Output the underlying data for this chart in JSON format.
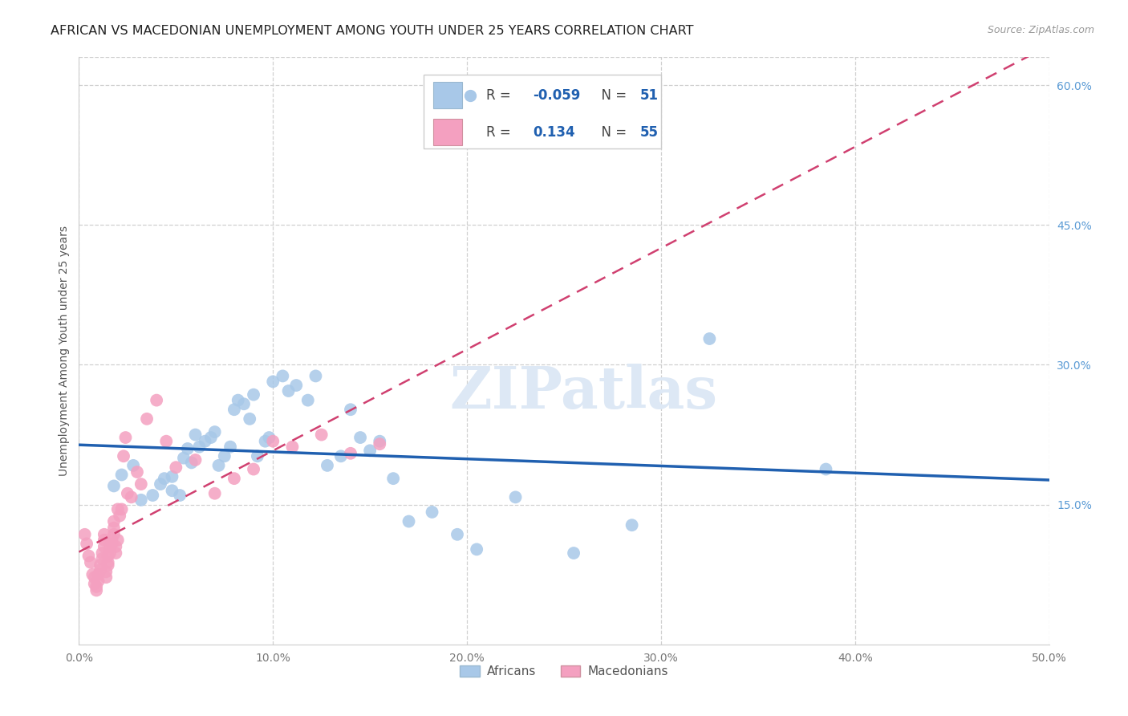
{
  "title": "AFRICAN VS MACEDONIAN UNEMPLOYMENT AMONG YOUTH UNDER 25 YEARS CORRELATION CHART",
  "source": "Source: ZipAtlas.com",
  "ylabel": "Unemployment Among Youth under 25 years",
  "xlim": [
    0.0,
    0.5
  ],
  "ylim": [
    0.0,
    0.63
  ],
  "xticks": [
    0.0,
    0.1,
    0.2,
    0.3,
    0.4,
    0.5
  ],
  "xticklabels": [
    "0.0%",
    "10.0%",
    "20.0%",
    "30.0%",
    "40.0%",
    "50.0%"
  ],
  "yticks_right": [
    0.15,
    0.3,
    0.45,
    0.6
  ],
  "yticklabels_right": [
    "15.0%",
    "30.0%",
    "45.0%",
    "60.0%"
  ],
  "legend_r_african": "-0.059",
  "legend_n_african": "51",
  "legend_r_macedonian": "0.134",
  "legend_n_macedonian": "55",
  "african_color": "#a8c8e8",
  "macedonian_color": "#f4a0c0",
  "african_line_color": "#2060b0",
  "macedonian_line_color": "#d04070",
  "watermark_text": "ZIPatlas",
  "africans_x": [
    0.018,
    0.022,
    0.028,
    0.032,
    0.038,
    0.042,
    0.044,
    0.048,
    0.048,
    0.052,
    0.054,
    0.056,
    0.058,
    0.06,
    0.062,
    0.065,
    0.068,
    0.07,
    0.072,
    0.075,
    0.078,
    0.08,
    0.082,
    0.085,
    0.088,
    0.09,
    0.092,
    0.096,
    0.098,
    0.1,
    0.105,
    0.108,
    0.112,
    0.118,
    0.122,
    0.128,
    0.135,
    0.14,
    0.145,
    0.15,
    0.155,
    0.162,
    0.17,
    0.182,
    0.195,
    0.205,
    0.225,
    0.255,
    0.285,
    0.325,
    0.385
  ],
  "africans_y": [
    0.17,
    0.182,
    0.192,
    0.155,
    0.16,
    0.172,
    0.178,
    0.18,
    0.165,
    0.16,
    0.2,
    0.21,
    0.195,
    0.225,
    0.212,
    0.218,
    0.222,
    0.228,
    0.192,
    0.202,
    0.212,
    0.252,
    0.262,
    0.258,
    0.242,
    0.268,
    0.202,
    0.218,
    0.222,
    0.282,
    0.288,
    0.272,
    0.278,
    0.262,
    0.288,
    0.192,
    0.202,
    0.252,
    0.222,
    0.208,
    0.218,
    0.178,
    0.132,
    0.142,
    0.118,
    0.102,
    0.158,
    0.098,
    0.128,
    0.328,
    0.188
  ],
  "macedonians_x": [
    0.003,
    0.004,
    0.005,
    0.006,
    0.007,
    0.008,
    0.008,
    0.009,
    0.009,
    0.01,
    0.01,
    0.011,
    0.011,
    0.012,
    0.012,
    0.013,
    0.013,
    0.013,
    0.014,
    0.014,
    0.015,
    0.015,
    0.015,
    0.016,
    0.016,
    0.017,
    0.017,
    0.018,
    0.018,
    0.018,
    0.019,
    0.019,
    0.02,
    0.02,
    0.021,
    0.022,
    0.023,
    0.024,
    0.025,
    0.027,
    0.03,
    0.032,
    0.035,
    0.04,
    0.045,
    0.05,
    0.06,
    0.07,
    0.08,
    0.09,
    0.1,
    0.11,
    0.125,
    0.14,
    0.155
  ],
  "macedonians_y": [
    0.118,
    0.108,
    0.095,
    0.088,
    0.075,
    0.065,
    0.072,
    0.058,
    0.062,
    0.068,
    0.075,
    0.08,
    0.085,
    0.092,
    0.098,
    0.105,
    0.112,
    0.118,
    0.072,
    0.078,
    0.085,
    0.088,
    0.095,
    0.098,
    0.105,
    0.108,
    0.112,
    0.118,
    0.125,
    0.132,
    0.098,
    0.105,
    0.112,
    0.145,
    0.138,
    0.145,
    0.202,
    0.222,
    0.162,
    0.158,
    0.185,
    0.172,
    0.242,
    0.262,
    0.218,
    0.19,
    0.198,
    0.162,
    0.178,
    0.188,
    0.218,
    0.212,
    0.225,
    0.205,
    0.215
  ],
  "background_color": "#ffffff",
  "grid_color": "#d0d0d0",
  "tick_color": "#777777",
  "right_tick_color": "#5b9bd5",
  "title_fontsize": 11.5,
  "axis_label_fontsize": 10,
  "tick_fontsize": 10,
  "legend_fontsize": 12
}
